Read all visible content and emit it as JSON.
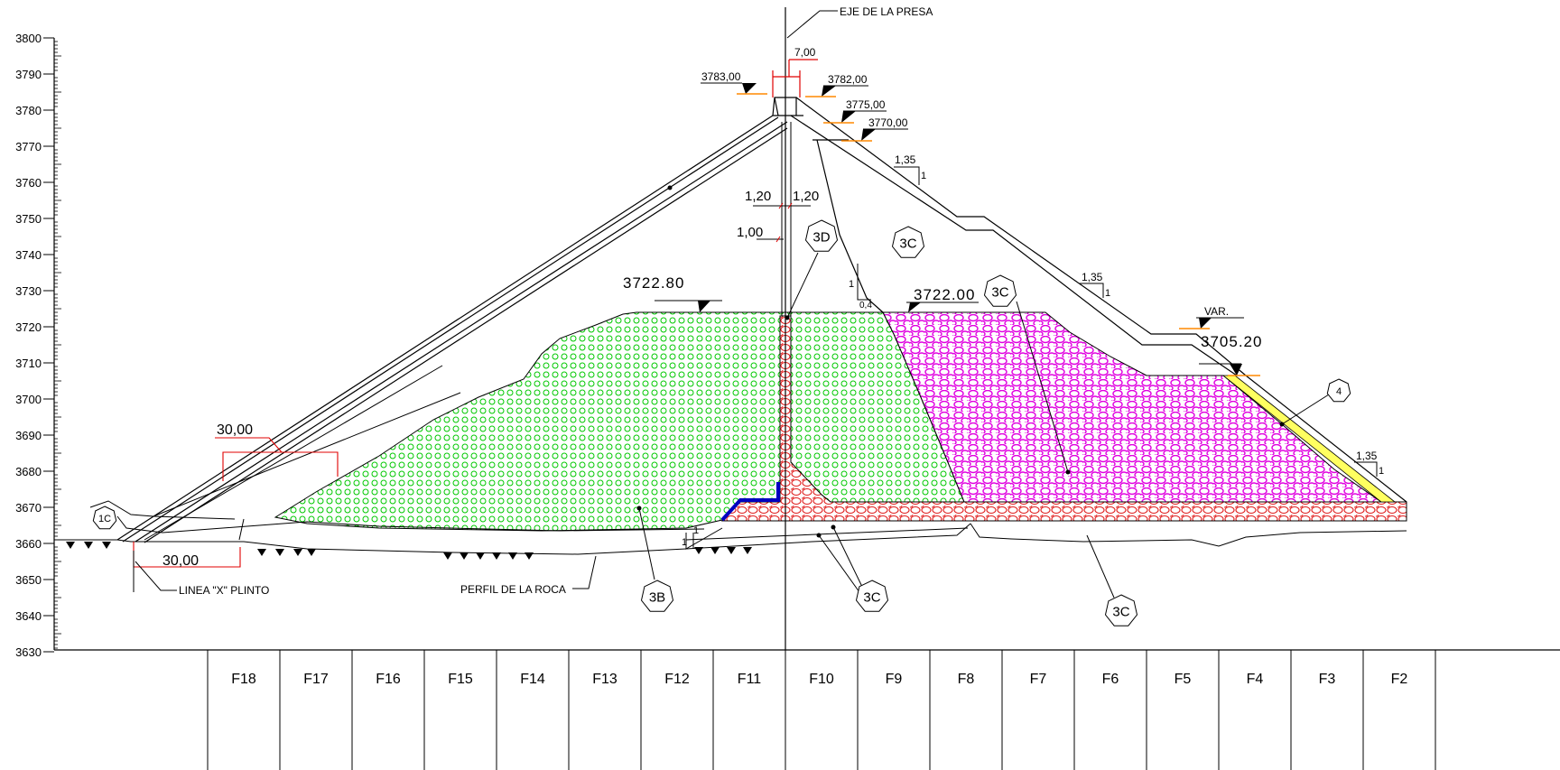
{
  "axis": {
    "ticks": [
      "3800",
      "3790",
      "3780",
      "3770",
      "3760",
      "3750",
      "3740",
      "3730",
      "3720",
      "3710",
      "3700",
      "3690",
      "3680",
      "3670",
      "3660",
      "3650",
      "3640",
      "3630"
    ]
  },
  "grid_cells": [
    "F18",
    "F17",
    "F16",
    "F15",
    "F14",
    "F13",
    "F12",
    "F11",
    "F10",
    "F9",
    "F8",
    "F7",
    "F6",
    "F5",
    "F4",
    "F3",
    "F2"
  ],
  "labels": {
    "dam_axis": "EJE DE LA PRESA",
    "crest_width": "7,00",
    "elev_3783": "3783,00",
    "elev_3782": "3782,00",
    "elev_3775": "3775,00",
    "elev_3770": "3770,00",
    "dim_120_left": "1,20",
    "dim_120_right": "1,20",
    "dim_100": "1,00",
    "elev_372280": "3722.80",
    "elev_372200": "3722.00",
    "elev_370520": "3705.20",
    "var": "VAR.",
    "slope_upper_h": "1,35",
    "slope_upper_v": "1",
    "slope_mid_h": "1,35",
    "slope_mid_v": "1",
    "slope_low_h": "1,35",
    "slope_low_v": "1",
    "slope_core_v": "1",
    "slope_core_h": "0,4",
    "plinth_slope_v": "1",
    "plinth_slope_h": "1",
    "dim_30_top": "30,00",
    "dim_30_bottom": "30,00",
    "plinth_line": "LINEA \"X\" PLINTO",
    "rock_profile": "PERFIL DE LA ROCA"
  },
  "zones": {
    "z1c": "1C",
    "z3b": "3B",
    "z3c_a": "3C",
    "z3c_b": "3C",
    "z3c_c": "3C",
    "z3c_d": "3C",
    "z3d": "3D",
    "z4": "4"
  },
  "colors": {
    "zone_3b": "#00c800",
    "zone_3c": "#e000e0",
    "zone_3d": "#e02020",
    "dim_red": "#e00000",
    "elev_orange": "#ff8800",
    "toe_blue": "#0000c0",
    "facing_yellow": "#ffff60"
  }
}
